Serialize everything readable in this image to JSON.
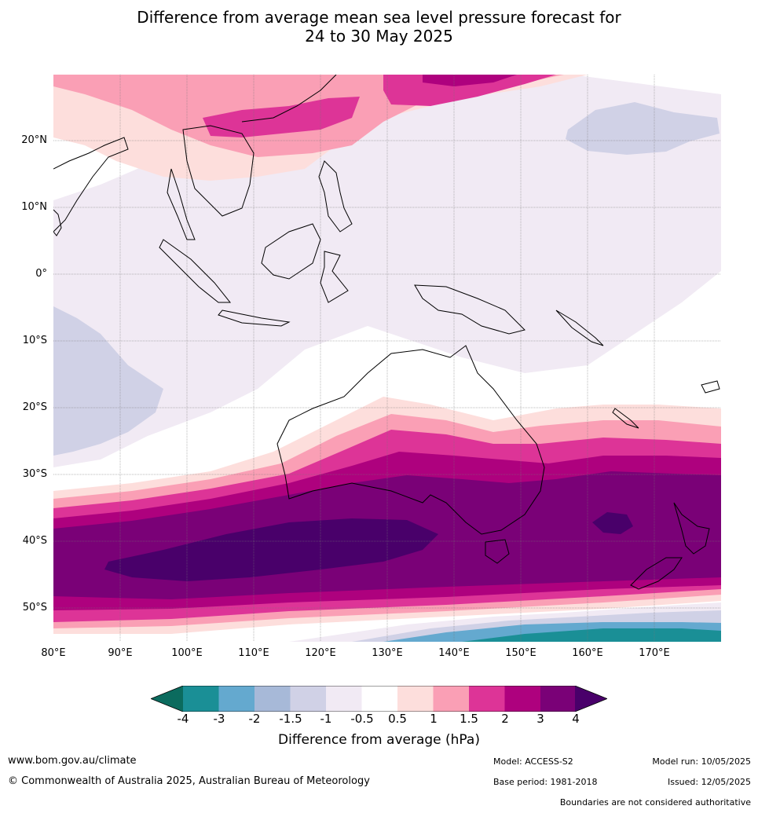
{
  "title": {
    "line1": "Difference from average mean sea level pressure forecast for",
    "line2": "24 to 30 May 2025"
  },
  "map": {
    "lat_labels": [
      "20°N",
      "10°N",
      "0°",
      "10°S",
      "20°S",
      "30°S",
      "40°S",
      "50°S"
    ],
    "lon_labels": [
      "80°E",
      "90°E",
      "100°E",
      "110°E",
      "120°E",
      "130°E",
      "140°E",
      "150°E",
      "160°E",
      "170°E"
    ]
  },
  "colorbar": {
    "ticks": [
      "-4",
      "-3",
      "-2",
      "-1.5",
      "-1",
      "-0.5",
      "0.5",
      "1",
      "1.5",
      "2",
      "3",
      "4"
    ],
    "colors": {
      "below_-4": "#0b6b5e",
      "-4_-3": "#1a8f96",
      "-3_-2": "#64a9cf",
      "-2_-1.5": "#a7b9d8",
      "-1.5_-1": "#d0d1e6",
      "-1_-0.5": "#f1eaf4",
      "-0.5_0.5": "#ffffff",
      "0.5_1": "#fddedc",
      "1_1.5": "#fa9fb5",
      "1.5_2": "#dd3497",
      "2_3": "#ae017e",
      "3_4": "#7a0177",
      "above_4": "#49006a"
    },
    "label": "Difference from average (hPa)"
  },
  "footer": {
    "website": "www.bom.gov.au/climate",
    "copyright": "© Commonwealth of Australia 2025, Australian Bureau of Meteorology",
    "model": "Model: ACCESS-S2",
    "base_period": "Base period: 1981-2018",
    "model_run": "Model run: 10/05/2025",
    "issued": "Issued: 12/05/2025",
    "disclaimer": "Boundaries are not considered authoritative"
  }
}
